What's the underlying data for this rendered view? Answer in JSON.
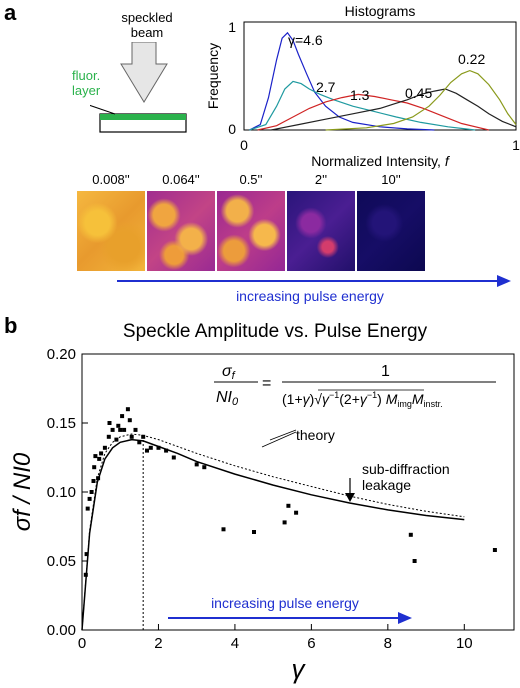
{
  "panel_a": {
    "label": "a",
    "schematic": {
      "beam_label_line1": "speckled",
      "beam_label_line2": "beam",
      "layer_label_line1": "fluor.",
      "layer_label_line2": "layer"
    },
    "tiles": [
      {
        "label": "0.008''",
        "style": "pale"
      },
      {
        "label": "0.064''",
        "style": "mixed"
      },
      {
        "label": "0.5''",
        "style": "mixed"
      },
      {
        "label": "2''",
        "style": "dark"
      },
      {
        "label": "10''",
        "style": "darkest"
      }
    ],
    "arrow_label": "increasing pulse energy"
  },
  "panel_b": {
    "label": "b",
    "formula": {
      "lhs_num": "σ",
      "lhs_num_sub": "f",
      "lhs_den": "NI",
      "lhs_den_sub": "0",
      "rhs_num": "1"
    },
    "annotations": {
      "theory": "theory",
      "sub_diffraction_line1": "sub-diffraction",
      "sub_diffraction_line2": "leakage",
      "arrow_label": "increasing pulse energy"
    }
  },
  "colors": {
    "arrow": "#1f2fd0",
    "layer": "#2bb24c",
    "hist_blue": "#1b22c9",
    "hist_teal": "#1f9aa0",
    "hist_red": "#d02424",
    "hist_black": "#222222",
    "hist_olive": "#8a9a1c"
  },
  "chart_data": [
    {
      "type": "line",
      "title": "Histograms",
      "xlabel": "Normalized Intensity, f",
      "ylabel": "Frequency",
      "xlim": [
        0,
        1
      ],
      "ylim": [
        0,
        1
      ],
      "x_ticks": [
        "0",
        "1"
      ],
      "y_ticks": [
        "0",
        "1"
      ],
      "series": [
        {
          "name": "γ=4.6",
          "color": "#1b22c9",
          "x": [
            0.02,
            0.06,
            0.09,
            0.12,
            0.14,
            0.16,
            0.18,
            0.2,
            0.23,
            0.26,
            0.3,
            0.35,
            0.4,
            0.5,
            0.6,
            0.7
          ],
          "y": [
            0.0,
            0.05,
            0.3,
            0.65,
            0.85,
            0.9,
            0.83,
            0.7,
            0.52,
            0.35,
            0.22,
            0.12,
            0.07,
            0.03,
            0.01,
            0.0
          ]
        },
        {
          "name": "2.7",
          "color": "#1f9aa0",
          "x": [
            0.02,
            0.08,
            0.12,
            0.15,
            0.18,
            0.21,
            0.24,
            0.28,
            0.33,
            0.4,
            0.48,
            0.56,
            0.65,
            0.75,
            0.85
          ],
          "y": [
            0.0,
            0.05,
            0.22,
            0.38,
            0.45,
            0.43,
            0.38,
            0.33,
            0.28,
            0.22,
            0.17,
            0.12,
            0.07,
            0.03,
            0.0
          ]
        },
        {
          "name": "1.3",
          "color": "#d02424",
          "x": [
            0.05,
            0.12,
            0.18,
            0.24,
            0.3,
            0.36,
            0.42,
            0.48,
            0.54,
            0.6,
            0.66,
            0.72,
            0.8,
            0.9
          ],
          "y": [
            0.0,
            0.04,
            0.12,
            0.2,
            0.26,
            0.3,
            0.33,
            0.31,
            0.28,
            0.25,
            0.2,
            0.14,
            0.06,
            0.0
          ]
        },
        {
          "name": "0.45",
          "color": "#222222",
          "x": [
            0.1,
            0.2,
            0.3,
            0.4,
            0.5,
            0.55,
            0.6,
            0.65,
            0.7,
            0.74,
            0.78,
            0.82,
            0.86,
            0.9,
            0.95,
            1.0
          ],
          "y": [
            0.0,
            0.05,
            0.1,
            0.15,
            0.2,
            0.24,
            0.28,
            0.33,
            0.36,
            0.38,
            0.34,
            0.28,
            0.22,
            0.15,
            0.08,
            0.03
          ]
        },
        {
          "name": "0.22",
          "color": "#8a9a1c",
          "x": [
            0.3,
            0.45,
            0.55,
            0.62,
            0.68,
            0.72,
            0.76,
            0.8,
            0.83,
            0.86,
            0.9,
            0.94,
            0.97,
            1.0
          ],
          "y": [
            0.0,
            0.02,
            0.06,
            0.12,
            0.22,
            0.32,
            0.44,
            0.52,
            0.55,
            0.52,
            0.42,
            0.28,
            0.15,
            0.05
          ]
        }
      ]
    },
    {
      "type": "scatter",
      "title": "Speckle Amplitude vs. Pulse Energy",
      "xlabel": "γ",
      "ylabel": "σf / NI0",
      "xlim": [
        0,
        11.3
      ],
      "ylim": [
        0,
        0.2
      ],
      "x_ticks": [
        0,
        2,
        4,
        6,
        8,
        10
      ],
      "y_ticks": [
        "0.00",
        "0.05",
        "0.10",
        "0.15",
        "0.20"
      ],
      "vertical_line_x": 1.6,
      "points": [
        {
          "x": 0.1,
          "y": 0.04
        },
        {
          "x": 0.12,
          "y": 0.055
        },
        {
          "x": 0.15,
          "y": 0.088
        },
        {
          "x": 0.2,
          "y": 0.095
        },
        {
          "x": 0.25,
          "y": 0.1
        },
        {
          "x": 0.3,
          "y": 0.108
        },
        {
          "x": 0.32,
          "y": 0.118
        },
        {
          "x": 0.35,
          "y": 0.126
        },
        {
          "x": 0.42,
          "y": 0.11
        },
        {
          "x": 0.45,
          "y": 0.124
        },
        {
          "x": 0.5,
          "y": 0.128
        },
        {
          "x": 0.6,
          "y": 0.132
        },
        {
          "x": 0.7,
          "y": 0.14
        },
        {
          "x": 0.72,
          "y": 0.15
        },
        {
          "x": 0.8,
          "y": 0.145
        },
        {
          "x": 0.9,
          "y": 0.138
        },
        {
          "x": 0.95,
          "y": 0.148
        },
        {
          "x": 1.0,
          "y": 0.145
        },
        {
          "x": 1.05,
          "y": 0.155
        },
        {
          "x": 1.1,
          "y": 0.145
        },
        {
          "x": 1.2,
          "y": 0.16
        },
        {
          "x": 1.25,
          "y": 0.152
        },
        {
          "x": 1.3,
          "y": 0.14
        },
        {
          "x": 1.4,
          "y": 0.145
        },
        {
          "x": 1.5,
          "y": 0.136
        },
        {
          "x": 1.6,
          "y": 0.14
        },
        {
          "x": 1.7,
          "y": 0.13
        },
        {
          "x": 1.8,
          "y": 0.132
        },
        {
          "x": 2.0,
          "y": 0.132
        },
        {
          "x": 2.2,
          "y": 0.13
        },
        {
          "x": 2.4,
          "y": 0.125
        },
        {
          "x": 3.0,
          "y": 0.12
        },
        {
          "x": 3.2,
          "y": 0.118
        },
        {
          "x": 3.7,
          "y": 0.073
        },
        {
          "x": 4.5,
          "y": 0.071
        },
        {
          "x": 5.3,
          "y": 0.078
        },
        {
          "x": 5.4,
          "y": 0.09
        },
        {
          "x": 5.6,
          "y": 0.085
        },
        {
          "x": 8.6,
          "y": 0.069
        },
        {
          "x": 8.7,
          "y": 0.05
        },
        {
          "x": 10.8,
          "y": 0.058
        }
      ],
      "series": [
        {
          "name": "theory",
          "style": "dotted",
          "x": [
            0,
            0.2,
            0.4,
            0.6,
            0.8,
            1.0,
            1.3,
            1.6,
            2.0,
            2.5,
            3,
            4,
            5,
            6,
            7,
            8,
            9,
            10
          ],
          "y": [
            0,
            0.072,
            0.11,
            0.128,
            0.136,
            0.14,
            0.142,
            0.141,
            0.138,
            0.133,
            0.128,
            0.119,
            0.111,
            0.104,
            0.097,
            0.091,
            0.086,
            0.082
          ]
        },
        {
          "name": "sub-diffraction leakage",
          "style": "solid",
          "x": [
            0,
            0.2,
            0.4,
            0.6,
            0.8,
            1.0,
            1.3,
            1.6,
            2.0,
            2.5,
            3,
            4,
            5,
            6,
            7,
            8,
            9,
            10
          ],
          "y": [
            0,
            0.07,
            0.107,
            0.124,
            0.132,
            0.136,
            0.138,
            0.137,
            0.133,
            0.128,
            0.122,
            0.113,
            0.105,
            0.098,
            0.092,
            0.087,
            0.083,
            0.08
          ]
        }
      ]
    }
  ]
}
